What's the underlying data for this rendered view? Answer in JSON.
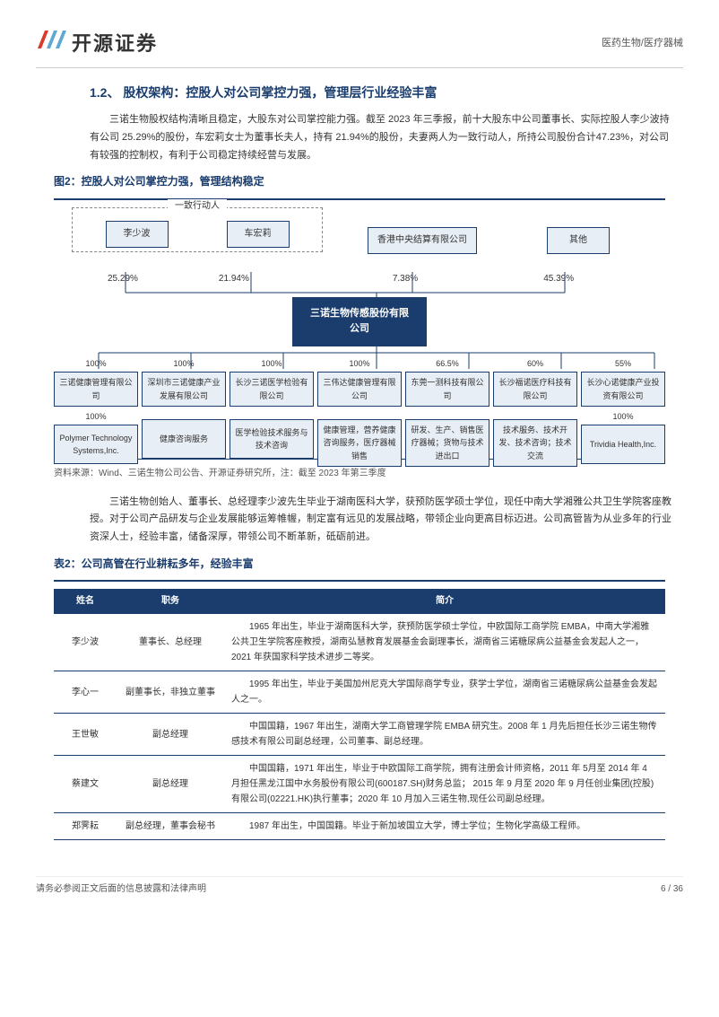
{
  "header": {
    "logo_text": "开源证券",
    "category": "医药生物/医疗器械"
  },
  "section": {
    "number": "1.2、",
    "title": "股权架构：控股人对公司掌控力强，管理层行业经验丰富"
  },
  "para1": "三诺生物股权结构清晰且稳定，大股东对公司掌控能力强。截至 2023 年三季报，前十大股东中公司董事长、实际控股人李少波持有公司 25.29%的股份，车宏莉女士为董事长夫人，持有 21.94%的股份，夫妻两人为一致行动人，所持公司股份合计47.23%，对公司有较强的控制权，有利于公司稳定持续经营与发展。",
  "fig2": {
    "label": "图2：控股人对公司掌控力强，管理结构稳定",
    "group_label": "一致行动人",
    "top_nodes": [
      {
        "name": "李少波",
        "pct": "25.29%"
      },
      {
        "name": "车宏莉",
        "pct": "21.94%"
      },
      {
        "name": "香港中央结算有限公司",
        "pct": "7.38%"
      },
      {
        "name": "其他",
        "pct": "45.39%"
      }
    ],
    "center": "三诺生物传感股份有限公司",
    "subs": [
      {
        "pct": "100%",
        "name": "三诺健康管理有限公司",
        "desc_pct": "100%",
        "desc": "Polymer Technology Systems,Inc."
      },
      {
        "pct": "100%",
        "name": "深圳市三诺健康产业发展有限公司",
        "desc": "健康咨询服务"
      },
      {
        "pct": "100%",
        "name": "长沙三诺医学检验有限公司",
        "desc": "医学检验技术服务与技术咨询"
      },
      {
        "pct": "100%",
        "name": "三伟达健康管理有限公司",
        "desc": "健康管理，营养健康咨询服务，医疗器械销售"
      },
      {
        "pct": "66.5%",
        "name": "东莞一测科技有限公司",
        "desc": "研发、生产、销售医疗器械；货物与技术进出口"
      },
      {
        "pct": "60%",
        "name": "长沙福诺医疗科技有限公司",
        "desc": "技术服务、技术开发、技术咨询；技术交流"
      },
      {
        "pct": "55%",
        "name": "长沙心诺健康产业投资有限公司",
        "desc_pct": "100%",
        "desc": "Trividia Health,Inc."
      }
    ],
    "source": "资料来源：Wind、三诺生物公司公告、开源证券研究所，注：截至 2023 年第三季度",
    "colors": {
      "box_bg": "#e8eef5",
      "box_border": "#1a3d6d",
      "center_bg": "#1a3d6d"
    }
  },
  "para2": "三诺生物创始人、董事长、总经理李少波先生毕业于湖南医科大学，获预防医学硕士学位，现任中南大学湘雅公共卫生学院客座教授。对于公司产品研发与企业发展能够运筹帷幄，制定富有远见的发展战略，带领企业向更高目标迈进。公司高管皆为从业多年的行业资深人士，经验丰富，储备深厚，带领公司不断革新，砥砺前进。",
  "table2": {
    "label": "表2：公司高管在行业耕耘多年，经验丰富",
    "columns": [
      "姓名",
      "职务",
      "简介"
    ],
    "rows": [
      {
        "name": "李少波",
        "role": "董事长、总经理",
        "bio": "1965 年出生，毕业于湖南医科大学，获预防医学硕士学位，中欧国际工商学院 EMBA，中南大学湘雅公共卫生学院客座教授，湖南弘慧教育发展基金会副理事长，湖南省三诺糖尿病公益基金会发起人之一，2021 年获国家科学技术进步二等奖。"
      },
      {
        "name": "李心一",
        "role": "副董事长，非独立董事",
        "bio": "1995 年出生，毕业于美国加州尼克大学国际商学专业，获学士学位，湖南省三诺糖尿病公益基金会发起人之一。"
      },
      {
        "name": "王世敏",
        "role": "副总经理",
        "bio": "中国国籍，1967 年出生，湖南大学工商管理学院 EMBA 研究生。2008 年 1 月先后担任长沙三诺生物传感技术有限公司副总经理，公司董事、副总经理。"
      },
      {
        "name": "蔡建文",
        "role": "副总经理",
        "bio": "中国国籍，1971 年出生，毕业于中欧国际工商学院，拥有注册会计师资格，2011 年 5月至 2014 年 4 月担任黑龙江国中水务股份有限公司(600187.SH)财务总监； 2015 年 9 月至 2020 年 9 月任创业集团(控股)有限公司(02221.HK)执行董事；2020 年 10 月加入三诺生物,现任公司副总经理。"
      },
      {
        "name": "郑霁耘",
        "role": "副总经理，董事会秘书",
        "bio": "1987 年出生，中国国籍。毕业于新加坡国立大学，博士学位；生物化学高级工程师。"
      }
    ]
  },
  "footer": {
    "left": "请务必参阅正文后面的信息披露和法律声明",
    "right": "6 / 36"
  }
}
